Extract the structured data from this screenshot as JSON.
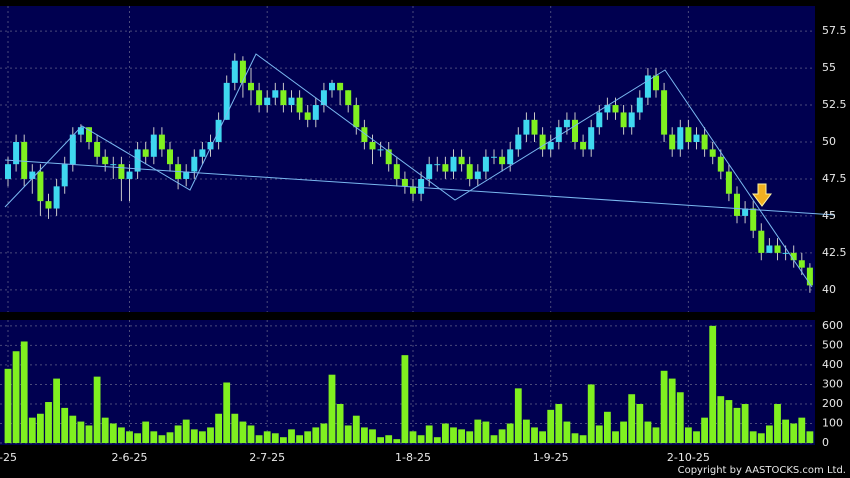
{
  "chart_data": [
    {
      "type": "candlestick",
      "categories": [
        "-25",
        null,
        null,
        null,
        null,
        null,
        null,
        null,
        null,
        null,
        null,
        null,
        null,
        null,
        null,
        "2-6-25",
        null,
        null,
        null,
        null,
        null,
        null,
        null,
        null,
        null,
        null,
        null,
        null,
        null,
        null,
        null,
        null,
        "2-7-25",
        null,
        null,
        null,
        null,
        null,
        null,
        null,
        null,
        null,
        null,
        null,
        null,
        null,
        null,
        null,
        null,
        null,
        "1-8-25",
        null,
        null,
        null,
        null,
        null,
        null,
        null,
        null,
        null,
        null,
        null,
        null,
        null,
        null,
        null,
        null,
        "1-9-25",
        null,
        null,
        null,
        null,
        null,
        null,
        null,
        null,
        null,
        null,
        null,
        null,
        null,
        null,
        null,
        null,
        "2-10-25",
        null,
        null,
        null,
        null,
        null,
        null,
        null,
        null,
        null,
        null,
        null,
        null,
        null,
        null,
        null
      ],
      "open": [
        47.5,
        48.5,
        50,
        47.5,
        48,
        46,
        45.5,
        47,
        48.5,
        50.5,
        51,
        50,
        49,
        48.5,
        48.5,
        47.5,
        48,
        49.5,
        49,
        50.5,
        49.5,
        48.5,
        47.5,
        48,
        49,
        49.5,
        50,
        51.5,
        54,
        55.5,
        54,
        53.5,
        52.5,
        53,
        53.5,
        52.5,
        53,
        52,
        51.5,
        52.5,
        53.5,
        54,
        53.5,
        52.5,
        51,
        50,
        49.5,
        49.5,
        48.5,
        47.5,
        47,
        46.5,
        47.5,
        48.5,
        48.5,
        48,
        49,
        48.5,
        47.5,
        48,
        49,
        49,
        48.5,
        49.5,
        50.5,
        51.5,
        50.5,
        49.5,
        50,
        51,
        51.5,
        50,
        49.5,
        51,
        52,
        52.5,
        52,
        51,
        52,
        53,
        54.5,
        53.5,
        50.5,
        49.5,
        51,
        50,
        50.5,
        49.5,
        49,
        48,
        46.5,
        45,
        45.5,
        44,
        42.5,
        43,
        42.5,
        42.5,
        42,
        41.5
      ],
      "high": [
        49,
        50.5,
        50.5,
        48.5,
        48.5,
        46.5,
        47.5,
        49,
        51,
        51.2,
        51,
        50.5,
        49.5,
        49,
        49,
        48.5,
        50,
        50,
        51,
        51,
        50,
        49,
        48.5,
        49.5,
        50,
        50.5,
        52,
        54.5,
        56,
        55.8,
        55,
        54,
        53.5,
        54,
        54,
        53.5,
        53.5,
        52.5,
        53,
        54,
        54.2,
        54,
        53.5,
        53,
        51.5,
        50.5,
        50,
        50,
        49,
        48,
        47.5,
        48,
        49,
        49,
        49,
        49.5,
        49.5,
        49,
        48.5,
        49.5,
        49.5,
        49.5,
        50,
        51,
        52,
        52,
        51,
        50.5,
        51.5,
        52,
        52,
        50.5,
        51.5,
        52.5,
        53,
        53,
        52.5,
        52.5,
        53.5,
        55,
        55,
        54,
        51,
        51.5,
        51.5,
        51,
        51,
        50,
        49.5,
        48.5,
        47,
        46,
        46,
        44.5,
        43.5,
        43.5,
        43,
        43,
        42.5,
        41.8
      ],
      "low": [
        47,
        48,
        47,
        46.5,
        45,
        44.8,
        45,
        46.5,
        48,
        50,
        49.5,
        48.5,
        48,
        47.5,
        46,
        46,
        47.5,
        48.5,
        48.5,
        49,
        48,
        46.8,
        47,
        47.5,
        48.5,
        49,
        49.5,
        51.5,
        53.5,
        53,
        52.5,
        52,
        52,
        52.5,
        52,
        52,
        51.5,
        51,
        51,
        52,
        53,
        52.5,
        52,
        50.5,
        49.5,
        48.5,
        49,
        48,
        47,
        46.5,
        46,
        46,
        47,
        48,
        47.5,
        47.5,
        48,
        47,
        47,
        47.5,
        48.5,
        48,
        48,
        49,
        50,
        50,
        49,
        49,
        49.5,
        50.5,
        49.5,
        49,
        49,
        50.5,
        51.5,
        51.5,
        50.5,
        50.5,
        51.5,
        52.5,
        53,
        50,
        49,
        49,
        49.5,
        49.5,
        49,
        48.5,
        47.5,
        46,
        44.5,
        44.5,
        43.5,
        42,
        42.5,
        42,
        42,
        41.5,
        41,
        39.8
      ],
      "close": [
        48.5,
        50,
        47.5,
        48,
        46,
        45.5,
        47,
        48.5,
        50.5,
        51,
        50,
        49,
        48.5,
        48.5,
        47.5,
        48,
        49.5,
        49,
        50.5,
        49.5,
        48.5,
        47.5,
        48,
        49,
        49.5,
        50,
        51.5,
        54,
        55.5,
        54,
        53.5,
        52.5,
        53,
        53.5,
        52.5,
        53,
        52,
        51.5,
        52.5,
        53.5,
        54,
        53.5,
        52.5,
        51,
        50,
        49.5,
        49.5,
        48.5,
        47.5,
        47,
        46.5,
        47.5,
        48.5,
        48.5,
        48,
        49,
        48.5,
        47.5,
        48,
        49,
        49,
        48.5,
        49.5,
        50.5,
        51.5,
        50.5,
        49.5,
        50,
        51,
        51.5,
        50,
        49.5,
        51,
        52,
        52.5,
        52,
        51,
        52,
        53,
        54.5,
        53.5,
        50.5,
        49.5,
        51,
        50,
        50.5,
        49.5,
        49,
        48,
        46.5,
        45,
        45.5,
        44,
        42.5,
        43,
        42.5,
        42.5,
        42,
        41.5,
        40.3
      ],
      "up_color": "#3fd8f0",
      "down_color": "#80f020",
      "ylim": [
        38.5,
        59.2
      ],
      "yticks": [
        40,
        42.5,
        45,
        47.5,
        50,
        52.5,
        55,
        57.5
      ],
      "grid": true
    },
    {
      "type": "bar",
      "values": [
        380,
        470,
        520,
        130,
        150,
        210,
        330,
        180,
        140,
        110,
        90,
        340,
        130,
        100,
        80,
        60,
        50,
        110,
        60,
        40,
        55,
        90,
        120,
        70,
        60,
        80,
        150,
        310,
        150,
        110,
        90,
        40,
        60,
        50,
        30,
        70,
        40,
        60,
        80,
        100,
        350,
        200,
        90,
        140,
        80,
        70,
        30,
        40,
        20,
        450,
        60,
        40,
        90,
        30,
        100,
        80,
        70,
        60,
        120,
        110,
        40,
        70,
        100,
        280,
        120,
        80,
        60,
        170,
        200,
        110,
        50,
        40,
        300,
        90,
        160,
        60,
        110,
        250,
        200,
        110,
        80,
        370,
        330,
        260,
        80,
        60,
        130,
        600,
        240,
        220,
        180,
        200,
        60,
        50,
        90,
        200,
        120,
        100,
        130,
        60
      ],
      "color": "#80f020",
      "ylim": [
        -10,
        630
      ],
      "yticks": [
        0,
        100,
        200,
        300,
        400,
        500,
        600
      ],
      "grid": true,
      "footer": "Copyright by AASTOCKS.com Ltd."
    }
  ]
}
